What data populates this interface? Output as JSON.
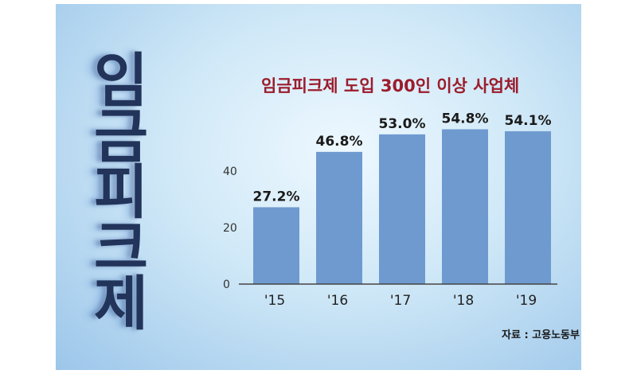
{
  "vertical_title": [
    "임",
    "금",
    "피",
    "크",
    "제"
  ],
  "source": "자료 : 고용노동부",
  "colors": {
    "bar": "#6f9ad0",
    "title": "#9b1c2c",
    "axis": "#444444"
  },
  "chart_data": {
    "type": "bar",
    "title": "임금피크제 도입 300인 이상 사업체",
    "categories": [
      "'15",
      "'16",
      "'17",
      "'18",
      "'19"
    ],
    "values": [
      27.2,
      46.8,
      53.0,
      54.8,
      54.1
    ],
    "value_labels": [
      "27.2%",
      "46.8%",
      "53.0%",
      "54.8%",
      "54.1%"
    ],
    "y_ticks": [
      0,
      20,
      40
    ],
    "ylim": [
      0,
      60
    ],
    "grid": false,
    "xlabel": "",
    "ylabel": ""
  }
}
